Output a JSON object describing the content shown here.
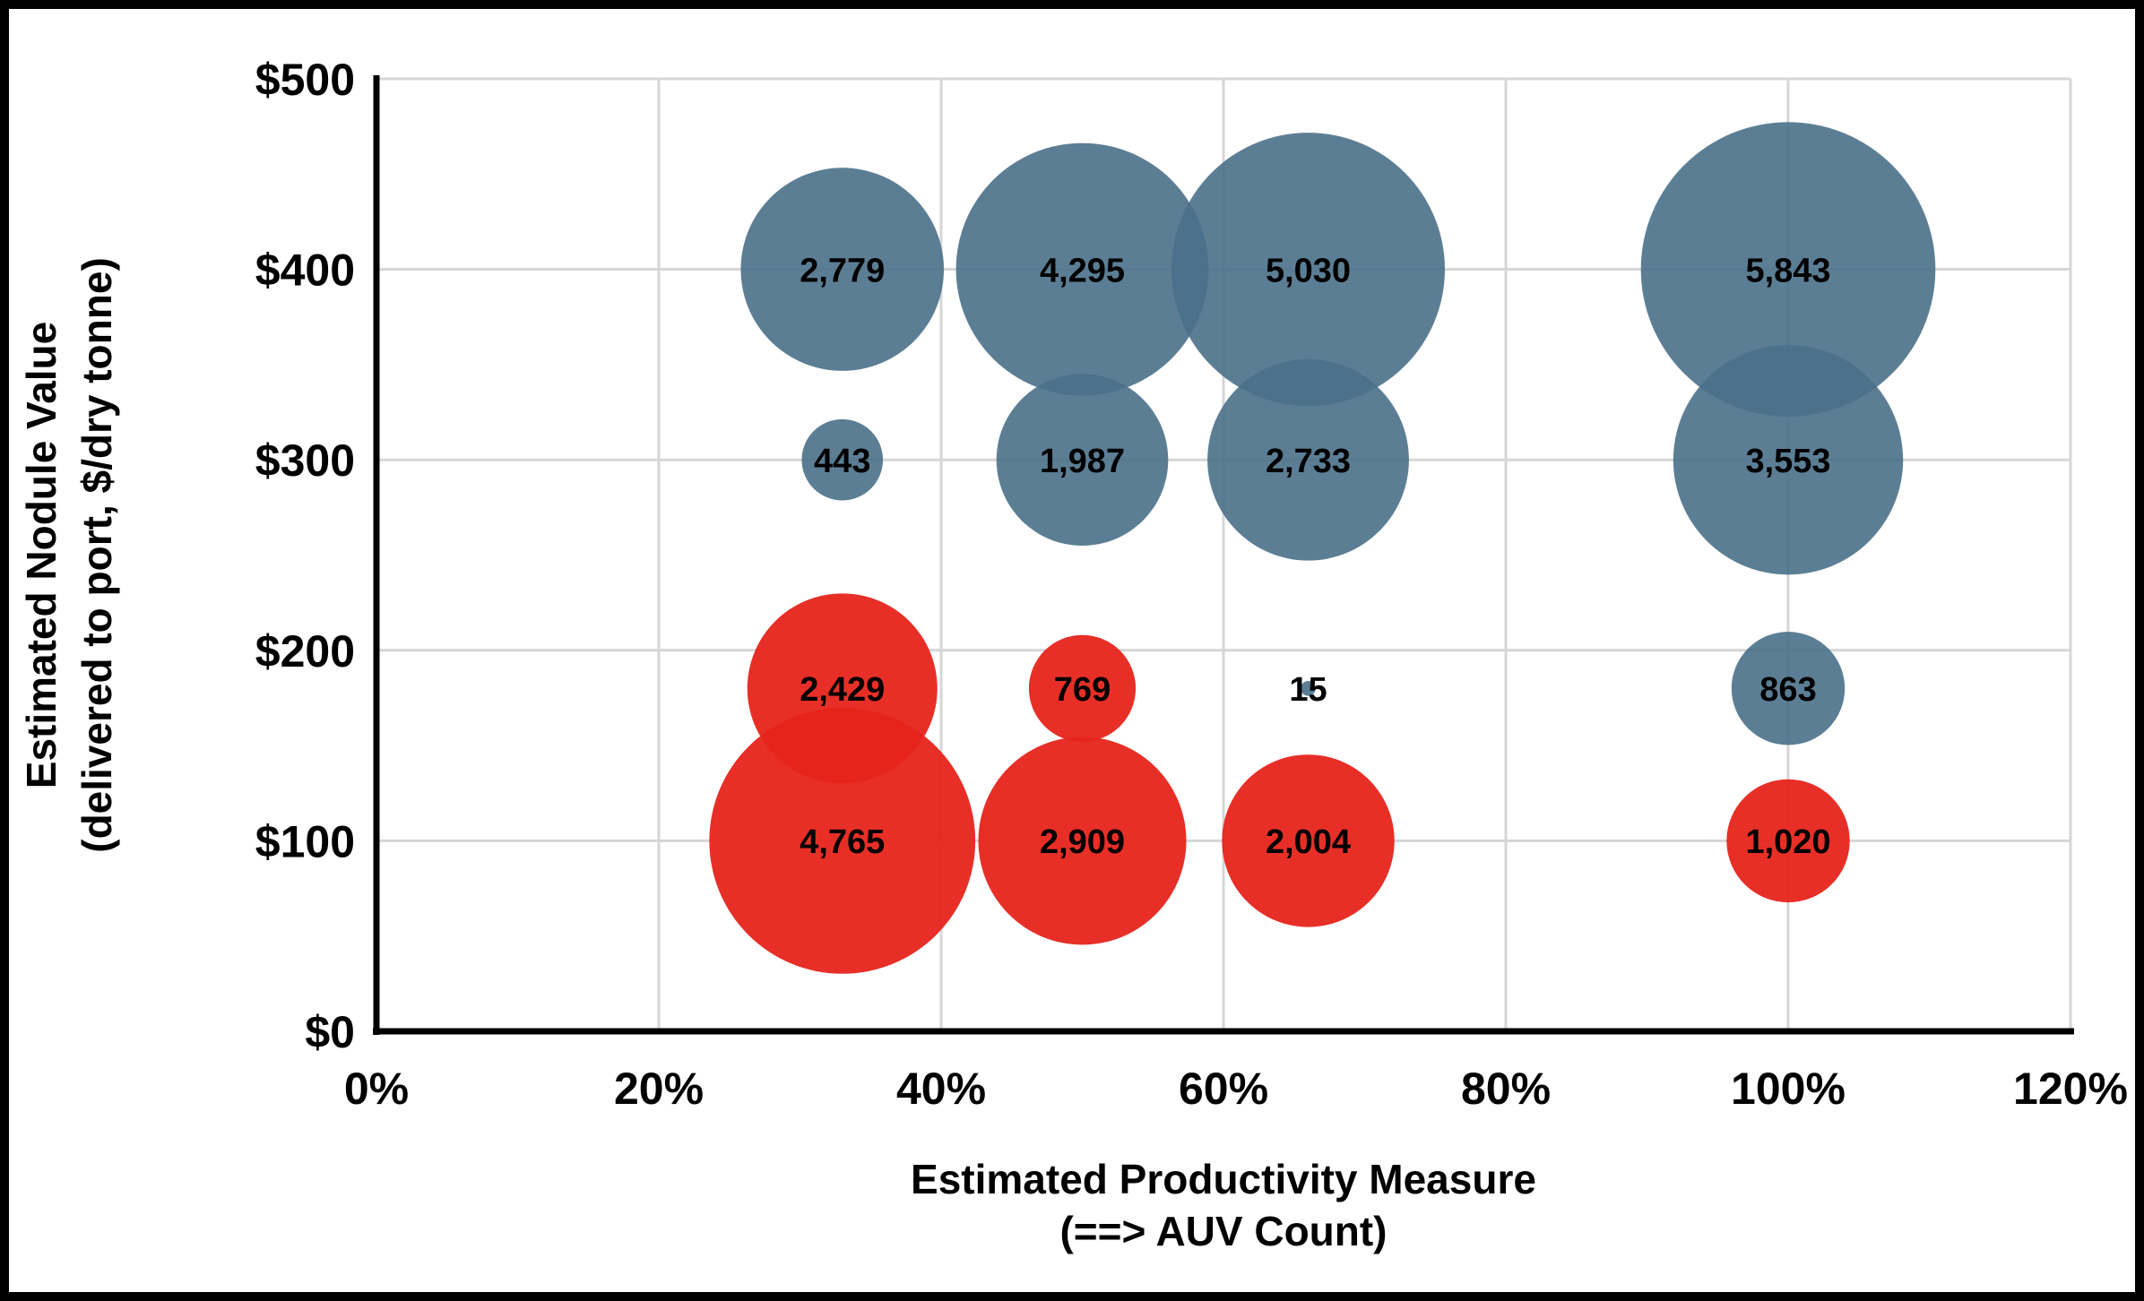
{
  "figure": {
    "background": "#FFFFFF",
    "border_color": "#000000",
    "grid_color": "#D6D6D6",
    "axis_color": "#000000",
    "label_color": "#000000"
  },
  "chart_data": {
    "type": "bubble",
    "title": "",
    "legend": "none",
    "grid": true,
    "bubble_scale": "radius proportional to sqrt(value)",
    "x_axis": {
      "title_lines": [
        "Estimated Productivity Measure",
        "(==> AUV Count)"
      ],
      "min": 0,
      "max": 120,
      "ticks": [
        {
          "value": 0,
          "label": "0%"
        },
        {
          "value": 20,
          "label": "20%"
        },
        {
          "value": 40,
          "label": "40%"
        },
        {
          "value": 60,
          "label": "60%"
        },
        {
          "value": 80,
          "label": "80%"
        },
        {
          "value": 100,
          "label": "100%"
        },
        {
          "value": 120,
          "label": "120%"
        }
      ]
    },
    "y_axis": {
      "title_lines": [
        "Estimated Nodule Value",
        "(delivered to port, $/dry tonne)"
      ],
      "min": 0,
      "max": 500,
      "ticks": [
        {
          "value": 0,
          "label": "$0"
        },
        {
          "value": 100,
          "label": "$100"
        },
        {
          "value": 200,
          "label": "$200"
        },
        {
          "value": 300,
          "label": "$300"
        },
        {
          "value": 400,
          "label": "$400"
        },
        {
          "value": 500,
          "label": "$500"
        }
      ]
    },
    "series": [
      {
        "name": "blue-bubbles",
        "color": "#4A7089",
        "opacity": 0.9,
        "points": [
          {
            "x": 33,
            "y": 400,
            "value": 2779,
            "label": "2,779"
          },
          {
            "x": 50,
            "y": 400,
            "value": 4295,
            "label": "4,295"
          },
          {
            "x": 66,
            "y": 400,
            "value": 5030,
            "label": "5,030"
          },
          {
            "x": 100,
            "y": 400,
            "value": 5843,
            "label": "5,843"
          },
          {
            "x": 33,
            "y": 300,
            "value": 443,
            "label": "443"
          },
          {
            "x": 50,
            "y": 300,
            "value": 1987,
            "label": "1,987"
          },
          {
            "x": 66,
            "y": 300,
            "value": 2733,
            "label": "2,733"
          },
          {
            "x": 100,
            "y": 300,
            "value": 3553,
            "label": "3,553"
          },
          {
            "x": 66,
            "y": 180,
            "value": 15,
            "label": "15"
          },
          {
            "x": 100,
            "y": 180,
            "value": 863,
            "label": "863"
          }
        ]
      },
      {
        "name": "red-bubbles",
        "color": "#E6241B",
        "opacity": 0.95,
        "points": [
          {
            "x": 33,
            "y": 180,
            "value": 2429,
            "label": "2,429"
          },
          {
            "x": 50,
            "y": 180,
            "value": 769,
            "label": "769"
          },
          {
            "x": 33,
            "y": 100,
            "value": 4765,
            "label": "4,765"
          },
          {
            "x": 50,
            "y": 100,
            "value": 2909,
            "label": "2,909"
          },
          {
            "x": 66,
            "y": 100,
            "value": 2004,
            "label": "2,004"
          },
          {
            "x": 100,
            "y": 100,
            "value": 1020,
            "label": "1,020"
          }
        ]
      }
    ]
  }
}
